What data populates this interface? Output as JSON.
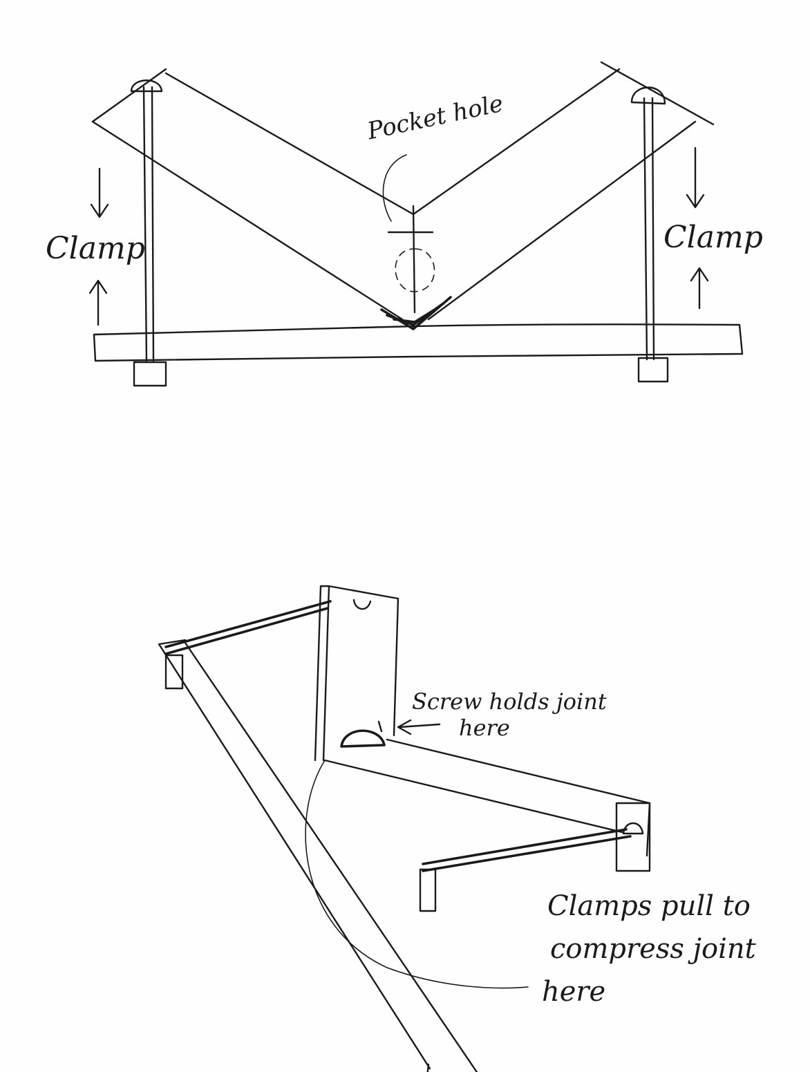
{
  "top_diagram": {
    "label_pocket_hole": "Pocket hole",
    "label_clamp_left": "Clamp",
    "label_clamp_right": "Clamp"
  },
  "bottom_diagram": {
    "label_screw": "Screw holds joint here",
    "label_screw_line1": "Screw holds joint",
    "label_screw_line2": "here",
    "label_clamps_line1": "Clamps pull to",
    "label_clamps_line2": "compress joint",
    "label_clamps_line3": "here"
  },
  "colors": {
    "ink": "#1a1a1a",
    "paper": "#fefefe"
  }
}
